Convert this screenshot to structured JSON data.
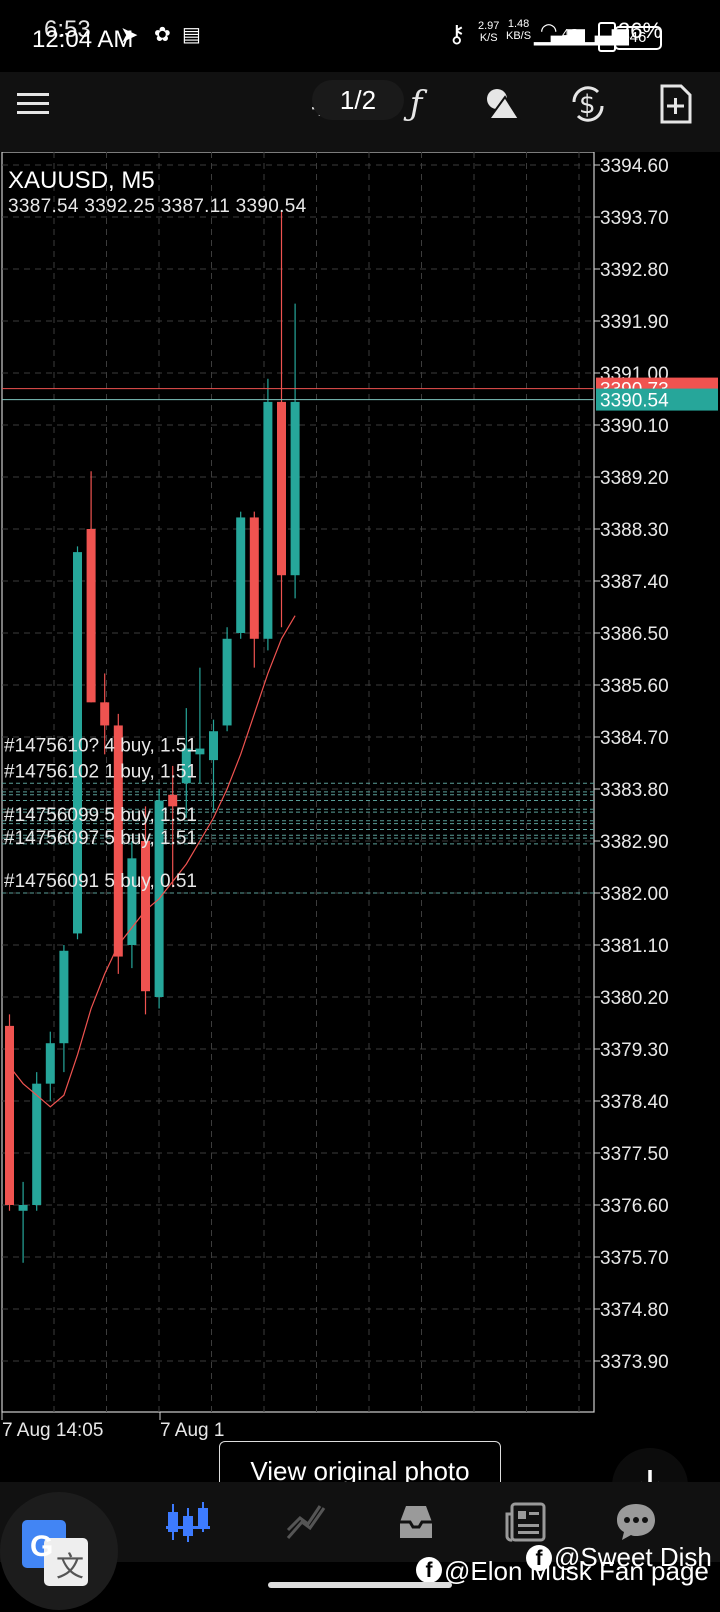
{
  "status_bar": {
    "time_back": "6:53",
    "time_front": "12:04 AM",
    "net_speed_top": "2.97",
    "net_speed_unit": "K/S",
    "net_speed_top2": "1.48",
    "net_speed_unit2": "KB/S",
    "network": "4G",
    "battery": "26%",
    "battery_front": "46"
  },
  "toolbar": {
    "menu_icon": "hamburger-icon",
    "crosshair_icon": "crosshair-icon",
    "page_indicator": "1/2",
    "indicator_icon": "function-icon",
    "objects_icon": "shapes-icon",
    "trade_icon": "dollar-cycle-icon",
    "new_doc_icon": "add-document-icon"
  },
  "chart_data": {
    "type": "candlestick",
    "symbol": "XAUUSD, M5",
    "ohlc_line": "3387.54 3392.25 3387.11 3390.54",
    "y_ticks": [
      "3394.60",
      "3393.70",
      "3392.80",
      "3391.90",
      "3391.00",
      "3390.10",
      "3389.20",
      "3388.30",
      "3387.40",
      "3386.50",
      "3385.60",
      "3384.70",
      "3383.80",
      "3382.90",
      "3382.00",
      "3381.10",
      "3380.20",
      "3379.30",
      "3378.40",
      "3377.50",
      "3376.60",
      "3375.70",
      "3374.80",
      "3373.90"
    ],
    "ylim": [
      3373.2,
      3395.1
    ],
    "x_labels": [
      "7 Aug 14:05",
      "7 Aug 1"
    ],
    "current_price": "3390.54",
    "ask_price": "3390.73",
    "candles": [
      {
        "o": 3379.7,
        "h": 3379.9,
        "l": 3376.5,
        "c": 3376.6
      },
      {
        "o": 3376.5,
        "h": 3377.0,
        "l": 3375.6,
        "c": 3376.6
      },
      {
        "o": 3376.6,
        "h": 3378.9,
        "l": 3376.5,
        "c": 3378.7
      },
      {
        "o": 3378.7,
        "h": 3379.6,
        "l": 3378.4,
        "c": 3379.4
      },
      {
        "o": 3379.4,
        "h": 3381.1,
        "l": 3378.9,
        "c": 3381.0
      },
      {
        "o": 3381.3,
        "h": 3388.0,
        "l": 3381.2,
        "c": 3387.9
      },
      {
        "o": 3388.3,
        "h": 3389.3,
        "l": 3385.3,
        "c": 3385.3
      },
      {
        "o": 3385.3,
        "h": 3385.8,
        "l": 3384.4,
        "c": 3384.9
      },
      {
        "o": 3384.9,
        "h": 3385.1,
        "l": 3380.6,
        "c": 3380.9
      },
      {
        "o": 3381.1,
        "h": 3382.9,
        "l": 3380.7,
        "c": 3382.6
      },
      {
        "o": 3382.9,
        "h": 3383.5,
        "l": 3379.9,
        "c": 3380.3
      },
      {
        "o": 3380.2,
        "h": 3383.8,
        "l": 3380.0,
        "c": 3383.6
      },
      {
        "o": 3383.7,
        "h": 3384.2,
        "l": 3382.1,
        "c": 3383.5
      },
      {
        "o": 3383.9,
        "h": 3385.2,
        "l": 3383.3,
        "c": 3384.5
      },
      {
        "o": 3384.4,
        "h": 3385.9,
        "l": 3383.9,
        "c": 3384.5
      },
      {
        "o": 3384.3,
        "h": 3385.0,
        "l": 3383.4,
        "c": 3384.8
      },
      {
        "o": 3384.9,
        "h": 3386.6,
        "l": 3384.8,
        "c": 3386.4
      },
      {
        "o": 3386.5,
        "h": 3388.6,
        "l": 3386.4,
        "c": 3388.5
      },
      {
        "o": 3388.5,
        "h": 3388.6,
        "l": 3385.9,
        "c": 3386.4
      },
      {
        "o": 3386.4,
        "h": 3390.9,
        "l": 3386.2,
        "c": 3390.5
      },
      {
        "o": 3390.5,
        "h": 3393.8,
        "l": 3386.6,
        "c": 3387.5
      },
      {
        "o": 3387.5,
        "h": 3392.2,
        "l": 3387.1,
        "c": 3390.5
      }
    ],
    "ma": [
      3379.0,
      3378.7,
      3378.5,
      3378.3,
      3378.5,
      3379.2,
      3380.0,
      3380.6,
      3381.1,
      3381.4,
      3381.7,
      3381.9,
      3382.2,
      3382.5,
      3382.9,
      3383.3,
      3383.8,
      3384.4,
      3385.1,
      3385.8,
      3386.4,
      3386.8
    ],
    "order_lines": [
      3383.9,
      3383.75,
      3383.7,
      3383.6,
      3383.45,
      3383.4,
      3383.25,
      3383.2,
      3383.1,
      3383.0,
      3382.95,
      3382.85,
      3382.0
    ],
    "order_labels": [
      {
        "text": "#1475610? 4 buy, 1.51",
        "price": 3384.45
      },
      {
        "text": "#14756102 1 buy, 1.51",
        "price": 3384.0
      },
      {
        "text": "#14756099 5 buy, 1.51",
        "price": 3383.25
      },
      {
        "text": "#14756097 5 buy, 1.51",
        "price": 3382.85
      },
      {
        "text": "#14756091 5 buy, 0.51",
        "price": 3382.1
      }
    ],
    "colors": {
      "bull": "#26a69a",
      "bear": "#ef5350",
      "ma": "#ef5350",
      "grid": "#3c3c3c",
      "ask_line": "#ef5350",
      "bid_line": "#26a69a"
    }
  },
  "overlay": {
    "view_original": "View original photo",
    "download_icon": "download-icon"
  },
  "bottom_nav": {
    "items": [
      "quotes-icon",
      "chart-icon",
      "trade-icon",
      "history-icon",
      "news-icon",
      "chat-icon"
    ],
    "active": "chart-icon"
  },
  "watermarks": {
    "page1": "@Elon Musk Fan page",
    "page2": "@Sweet Dish"
  },
  "translate_icon": "google-translate-icon"
}
